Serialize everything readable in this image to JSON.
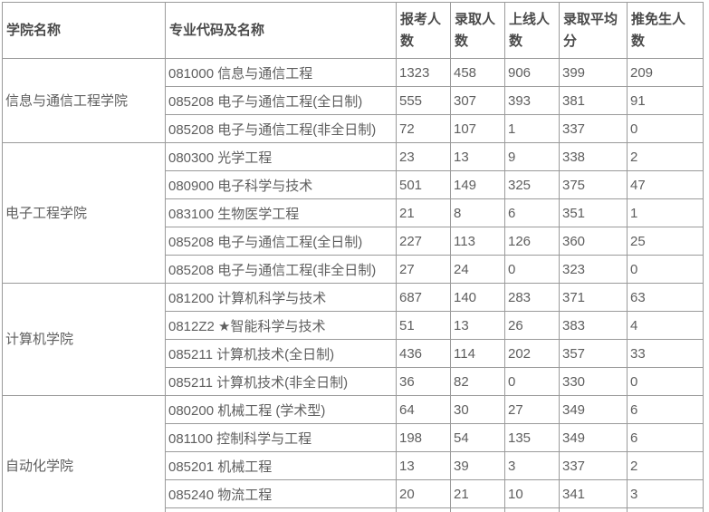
{
  "table": {
    "headers": [
      {
        "label": "学院名称"
      },
      {
        "label": "专业代码及名称"
      },
      {
        "label": "报考人数"
      },
      {
        "label": "录取人数"
      },
      {
        "label": "上线人数"
      },
      {
        "label": "录取平均分"
      },
      {
        "label": "推免生人数"
      }
    ],
    "groups": [
      {
        "college": "信息与通信工程学院",
        "rows": [
          {
            "major": "081000 信息与通信工程",
            "applicants": "1323",
            "admitted": "458",
            "above_line": "906",
            "avg_score": "399",
            "exempt": "209"
          },
          {
            "major": "085208 电子与通信工程(全日制)",
            "applicants": "555",
            "admitted": "307",
            "above_line": "393",
            "avg_score": "381",
            "exempt": "91"
          },
          {
            "major": "085208 电子与通信工程(非全日制)",
            "applicants": "72",
            "admitted": "107",
            "above_line": "1",
            "avg_score": "337",
            "exempt": "0"
          }
        ]
      },
      {
        "college": "电子工程学院",
        "rows": [
          {
            "major": "080300 光学工程",
            "applicants": "23",
            "admitted": "13",
            "above_line": "9",
            "avg_score": "338",
            "exempt": "2"
          },
          {
            "major": "080900 电子科学与技术",
            "applicants": "501",
            "admitted": "149",
            "above_line": "325",
            "avg_score": "375",
            "exempt": "47"
          },
          {
            "major": "083100 生物医学工程",
            "applicants": "21",
            "admitted": "8",
            "above_line": "6",
            "avg_score": "351",
            "exempt": "1"
          },
          {
            "major": "085208 电子与通信工程(全日制)",
            "applicants": "227",
            "admitted": "113",
            "above_line": "126",
            "avg_score": "360",
            "exempt": "25"
          },
          {
            "major": "085208 电子与通信工程(非全日制)",
            "applicants": "27",
            "admitted": "24",
            "above_line": "0",
            "avg_score": "323",
            "exempt": "0"
          }
        ]
      },
      {
        "college": "计算机学院",
        "rows": [
          {
            "major": "081200 计算机科学与技术",
            "applicants": "687",
            "admitted": "140",
            "above_line": "283",
            "avg_score": "371",
            "exempt": "63"
          },
          {
            "major": "0812Z2 ★智能科学与技术",
            "applicants": "51",
            "admitted": "13",
            "above_line": "26",
            "avg_score": "383",
            "exempt": "4"
          },
          {
            "major": "085211 计算机技术(全日制)",
            "applicants": "436",
            "admitted": "114",
            "above_line": "202",
            "avg_score": "357",
            "exempt": "33"
          },
          {
            "major": "085211 计算机技术(非全日制)",
            "applicants": "36",
            "admitted": "82",
            "above_line": "0",
            "avg_score": "330",
            "exempt": "0"
          }
        ]
      },
      {
        "college": "自动化学院",
        "rows": [
          {
            "major": "080200 机械工程 (学术型)",
            "applicants": "64",
            "admitted": "30",
            "above_line": "27",
            "avg_score": "349",
            "exempt": "6"
          },
          {
            "major": "081100 控制科学与工程",
            "applicants": "198",
            "admitted": "54",
            "above_line": "135",
            "avg_score": "349",
            "exempt": "6"
          },
          {
            "major": "085201 机械工程",
            "applicants": "13",
            "admitted": "39",
            "above_line": "3",
            "avg_score": "337",
            "exempt": "2"
          },
          {
            "major": "085240 物流工程",
            "applicants": "20",
            "admitted": "21",
            "above_line": "10",
            "avg_score": "341",
            "exempt": "3"
          },
          {
            "major": "",
            "applicants": "",
            "admitted": "",
            "above_line": "",
            "avg_score": "",
            "exempt": ""
          }
        ]
      }
    ]
  },
  "colors": {
    "border": "#9a9a9a",
    "header_text": "#4a4a4a",
    "body_text": "#5e5e5e",
    "background": "#ffffff"
  }
}
